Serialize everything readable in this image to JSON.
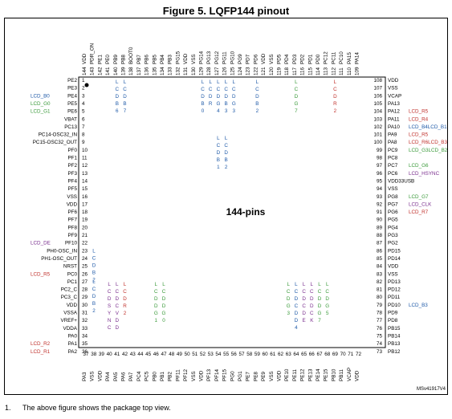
{
  "title": "Figure 5. LQFP144 pinout",
  "center_label": "144-pins",
  "ref_code": "MSv41917V4",
  "footnote_number": "1.",
  "footnote": "The above figure shows the package top view.",
  "colors": {
    "blue": "#1f5aa8",
    "green": "#3a9a3a",
    "red": "#c0302b",
    "purple": "#7a2e8e",
    "black": "#000000"
  },
  "left_pins": [
    {
      "n": "1",
      "name": "PE2"
    },
    {
      "n": "2",
      "name": "PE3"
    },
    {
      "n": "3",
      "name": "PE4",
      "lcd": "LCD_B0",
      "c": "blue"
    },
    {
      "n": "4",
      "name": "PE5",
      "lcd": "LCD_G0",
      "c": "green"
    },
    {
      "n": "5",
      "name": "PE6",
      "lcd": "LCD_G1",
      "c": "green"
    },
    {
      "n": "6",
      "name": "VBAT"
    },
    {
      "n": "7",
      "name": "PC13"
    },
    {
      "n": "8",
      "name": "PC14-OSC32_IN"
    },
    {
      "n": "9",
      "name": "PC15-OSC32_OUT"
    },
    {
      "n": "10",
      "name": "PF0"
    },
    {
      "n": "11",
      "name": "PF1"
    },
    {
      "n": "12",
      "name": "PF2"
    },
    {
      "n": "13",
      "name": "PF3"
    },
    {
      "n": "14",
      "name": "PF4"
    },
    {
      "n": "15",
      "name": "PF5"
    },
    {
      "n": "16",
      "name": "VSS"
    },
    {
      "n": "17",
      "name": "VDD"
    },
    {
      "n": "18",
      "name": "PF6"
    },
    {
      "n": "19",
      "name": "PF7"
    },
    {
      "n": "20",
      "name": "PF8"
    },
    {
      "n": "21",
      "name": "PF9"
    },
    {
      "n": "22",
      "name": "PF10",
      "lcd": "LCD_DE",
      "c": "purple"
    },
    {
      "n": "23",
      "name": "PH0-OSC_IN"
    },
    {
      "n": "24",
      "name": "PH1-OSC_OUT"
    },
    {
      "n": "25",
      "name": "NRST"
    },
    {
      "n": "26",
      "name": "PC0",
      "lcd": "LCD_R5",
      "c": "red"
    },
    {
      "n": "27",
      "name": "PC1"
    },
    {
      "n": "28",
      "name": "PC2_C"
    },
    {
      "n": "29",
      "name": "PC3_C"
    },
    {
      "n": "30",
      "name": "VDD"
    },
    {
      "n": "31",
      "name": "VSSA"
    },
    {
      "n": "32",
      "name": "VREF+"
    },
    {
      "n": "33",
      "name": "VDDA"
    },
    {
      "n": "34",
      "name": "PA0"
    },
    {
      "n": "35",
      "name": "PA1",
      "lcd": "LCD_R2",
      "c": "red"
    },
    {
      "n": "36",
      "name": "PA2",
      "lcd": "LCD_R1",
      "c": "red"
    }
  ],
  "right_pins": [
    {
      "n": "108",
      "name": "VDD"
    },
    {
      "n": "107",
      "name": "VSS"
    },
    {
      "n": "106",
      "name": "VCAP"
    },
    {
      "n": "105",
      "name": "PA13"
    },
    {
      "n": "104",
      "name": "PA12",
      "lcd": "LCD_R5",
      "c": "red"
    },
    {
      "n": "103",
      "name": "PA11",
      "lcd": "LCD_R4",
      "c": "red"
    },
    {
      "n": "102",
      "name": "PA10",
      "lcd": "LCD_B4LCD_B1",
      "c": "blue"
    },
    {
      "n": "101",
      "name": "PA9",
      "lcd": "LCD_R5",
      "c": "red"
    },
    {
      "n": "100",
      "name": "PA8",
      "lcd": "LCD_R6LCD_B3",
      "c": "mix"
    },
    {
      "n": "99",
      "name": "PC9",
      "lcd": "LCD_G3LCD_B2",
      "c": "mix2"
    },
    {
      "n": "98",
      "name": "PC8"
    },
    {
      "n": "97",
      "name": "PC7",
      "lcd": "LCD_G6",
      "c": "green"
    },
    {
      "n": "96",
      "name": "PC6",
      "lcd": "LCD_HSYNC",
      "c": "purple"
    },
    {
      "n": "95",
      "name": "VDD33USB"
    },
    {
      "n": "94",
      "name": "VSS"
    },
    {
      "n": "93",
      "name": "PG8",
      "lcd": "LCD_G7",
      "c": "green"
    },
    {
      "n": "92",
      "name": "PG7",
      "lcd": "LCD_CLK",
      "c": "purple"
    },
    {
      "n": "91",
      "name": "PG6",
      "lcd": "LCD_R7",
      "c": "red"
    },
    {
      "n": "90",
      "name": "PG5"
    },
    {
      "n": "89",
      "name": "PG4"
    },
    {
      "n": "88",
      "name": "PG3"
    },
    {
      "n": "87",
      "name": "PG2"
    },
    {
      "n": "86",
      "name": "PD15"
    },
    {
      "n": "85",
      "name": "PD14"
    },
    {
      "n": "84",
      "name": "VDD"
    },
    {
      "n": "83",
      "name": "VSS"
    },
    {
      "n": "82",
      "name": "PD13"
    },
    {
      "n": "81",
      "name": "PD12"
    },
    {
      "n": "80",
      "name": "PD11"
    },
    {
      "n": "79",
      "name": "PD10",
      "lcd": "LCD_B3",
      "c": "blue"
    },
    {
      "n": "78",
      "name": "PD9"
    },
    {
      "n": "77",
      "name": "PD8"
    },
    {
      "n": "76",
      "name": "PB15"
    },
    {
      "n": "75",
      "name": "PB14"
    },
    {
      "n": "74",
      "name": "PB13"
    },
    {
      "n": "73",
      "name": "PB12"
    }
  ],
  "top_pins": [
    {
      "n": "144",
      "name": "VDD"
    },
    {
      "n": "143",
      "name": "PDR_ON"
    },
    {
      "n": "142",
      "name": "PE1"
    },
    {
      "n": "141",
      "name": "PE0"
    },
    {
      "n": "140",
      "name": "PB9"
    },
    {
      "n": "139",
      "name": "PB8"
    },
    {
      "n": "138",
      "name": "BOOT0"
    },
    {
      "n": "137",
      "name": "PB7"
    },
    {
      "n": "136",
      "name": "PB6"
    },
    {
      "n": "135",
      "name": "PB5"
    },
    {
      "n": "134",
      "name": "PB4"
    },
    {
      "n": "133",
      "name": "PB3"
    },
    {
      "n": "132",
      "name": "PG15"
    },
    {
      "n": "131",
      "name": "VDD"
    },
    {
      "n": "130",
      "name": "VSS"
    },
    {
      "n": "129",
      "name": "PG14"
    },
    {
      "n": "128",
      "name": "PG13"
    },
    {
      "n": "127",
      "name": "PG12"
    },
    {
      "n": "126",
      "name": "PG11"
    },
    {
      "n": "125",
      "name": "PG10"
    },
    {
      "n": "124",
      "name": "PG9"
    },
    {
      "n": "123",
      "name": "PD7"
    },
    {
      "n": "122",
      "name": "PD6"
    },
    {
      "n": "121",
      "name": "VDD"
    },
    {
      "n": "120",
      "name": "VSS"
    },
    {
      "n": "119",
      "name": "PD5"
    },
    {
      "n": "118",
      "name": "PD4"
    },
    {
      "n": "117",
      "name": "PD3"
    },
    {
      "n": "116",
      "name": "PD2"
    },
    {
      "n": "115",
      "name": "PD1"
    },
    {
      "n": "114",
      "name": "PD0"
    },
    {
      "n": "113",
      "name": "PC12"
    },
    {
      "n": "112",
      "name": "PC11"
    },
    {
      "n": "111",
      "name": "PC10"
    },
    {
      "n": "110",
      "name": "PA15"
    },
    {
      "n": "109",
      "name": "PA14"
    }
  ],
  "bottom_pins": [
    {
      "n": "37",
      "name": "PA3"
    },
    {
      "n": "38",
      "name": "VSS"
    },
    {
      "n": "39",
      "name": "VDD"
    },
    {
      "n": "40",
      "name": "PA4"
    },
    {
      "n": "41",
      "name": "PA5"
    },
    {
      "n": "42",
      "name": "PA6"
    },
    {
      "n": "43",
      "name": "PA7"
    },
    {
      "n": "44",
      "name": "PC4"
    },
    {
      "n": "45",
      "name": "PC5"
    },
    {
      "n": "46",
      "name": "PB0"
    },
    {
      "n": "47",
      "name": "PB1"
    },
    {
      "n": "48",
      "name": "PB2"
    },
    {
      "n": "49",
      "name": "PF11"
    },
    {
      "n": "50",
      "name": "PF12"
    },
    {
      "n": "51",
      "name": "VSS"
    },
    {
      "n": "52",
      "name": "VDD"
    },
    {
      "n": "53",
      "name": "PF13"
    },
    {
      "n": "54",
      "name": "PF14"
    },
    {
      "n": "55",
      "name": "PF15"
    },
    {
      "n": "56",
      "name": "PG0"
    },
    {
      "n": "57",
      "name": "PG1"
    },
    {
      "n": "58",
      "name": "PE7"
    },
    {
      "n": "59",
      "name": "PE8"
    },
    {
      "n": "60",
      "name": "PE9"
    },
    {
      "n": "61",
      "name": "VSS"
    },
    {
      "n": "62",
      "name": "VDD"
    },
    {
      "n": "63",
      "name": "PE10"
    },
    {
      "n": "64",
      "name": "PE11"
    },
    {
      "n": "65",
      "name": "PE12"
    },
    {
      "n": "66",
      "name": "PE13"
    },
    {
      "n": "67",
      "name": "PE14"
    },
    {
      "n": "68",
      "name": "PE15"
    },
    {
      "n": "69",
      "name": "PB10"
    },
    {
      "n": "70",
      "name": "PB11"
    },
    {
      "n": "71",
      "name": "VCAP"
    },
    {
      "n": "72",
      "name": "VDD"
    }
  ],
  "top_lcd": [
    {
      "col": 4,
      "text": "LCD_B6",
      "c": "blue"
    },
    {
      "col": 5,
      "text": "LCD_B7",
      "c": "blue"
    },
    {
      "col": 15,
      "text": "LCD_B0",
      "c": "blue"
    },
    {
      "col": 16,
      "text": "LCD_R",
      "c": "blue"
    },
    {
      "col": 17,
      "text": "LCD_G4",
      "c": "blue"
    },
    {
      "col": 18,
      "text": "LCD_B3",
      "c": "blue"
    },
    {
      "col": 19,
      "text": "LCD_G3",
      "c": "blue"
    },
    {
      "col": 22,
      "text": "LCD_B2",
      "c": "blue"
    },
    {
      "col": 27,
      "text": "LCD_G7",
      "c": "green"
    },
    {
      "col": 32,
      "text": "LCD_R2",
      "c": "red"
    }
  ],
  "inner_lcd": [
    {
      "col": 17,
      "text": "LCD_B1",
      "c": "blue"
    },
    {
      "col": 18,
      "text": "LCD_B2",
      "c": "blue"
    }
  ],
  "left_inner_lcd": [
    {
      "row": 22,
      "text": "LCD_B2",
      "c": "blue"
    },
    {
      "row": 26,
      "text": "LCD_B2",
      "c": "blue"
    }
  ],
  "bottom_lcd": [
    {
      "col": 3,
      "text": "LCD_SYNC",
      "c": "purple"
    },
    {
      "col": 4,
      "text": "LCD_CVDD",
      "c": "purple"
    },
    {
      "col": 5,
      "text": "LCD_R2",
      "c": "red"
    },
    {
      "col": 9,
      "text": "LCD_DG1",
      "c": "green"
    },
    {
      "col": 10,
      "text": "LCD_DG0",
      "c": "green"
    },
    {
      "col": 26,
      "text": "LCD_G3",
      "c": "green"
    },
    {
      "col": 27,
      "text": "LCD_CDD4",
      "c": "blue"
    },
    {
      "col": 28,
      "text": "LCD_CDE",
      "c": "purple"
    },
    {
      "col": 29,
      "text": "LCD_DCK",
      "c": "purple"
    },
    {
      "col": 30,
      "text": "LCD_DG7",
      "c": "green"
    },
    {
      "col": 31,
      "text": "LCD_G5",
      "c": "green"
    }
  ]
}
